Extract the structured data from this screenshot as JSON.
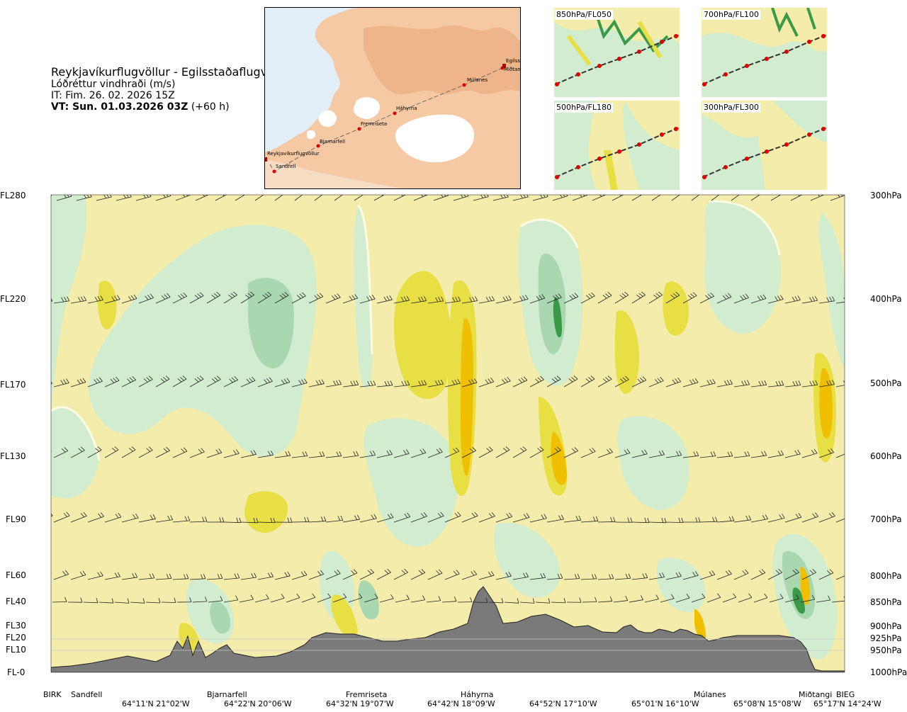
{
  "header": {
    "route": "Reykjavíkurflugvöllur - Egilsstaðaflugvöllur",
    "variable": "Lóðréttur vindhraði (m/s)",
    "issue_time": "IT: Fim. 26. 02. 2026 15Z",
    "valid_time_bold": "VT: Sun. 01.03.2026 03Z",
    "valid_offset": "(+60 h)"
  },
  "route_map": {
    "waypoints": [
      {
        "name": "Reykjavíkurflugvöllur"
      },
      {
        "name": "Sandfell"
      },
      {
        "name": "Bjarnarfell"
      },
      {
        "name": "Fremriseta"
      },
      {
        "name": "Háhyrna"
      },
      {
        "name": "Múlanes"
      },
      {
        "name": "Miðtangi"
      },
      {
        "name": "Egilsst"
      }
    ]
  },
  "level_panels": [
    {
      "label": "850hPa/FL050"
    },
    {
      "label": "700hPa/FL100"
    },
    {
      "label": "500hPa/FL180"
    },
    {
      "label": "300hPa/FL300"
    }
  ],
  "colors": {
    "positive_1": "#f3ecaa",
    "positive_2": "#e8df45",
    "positive_3": "#f0c000",
    "negative_1": "#d2eccf",
    "negative_2": "#a9d7b0",
    "negative_3": "#3a9a48",
    "near_zero": "#fdfde6",
    "terrain": "#7a7a7a"
  },
  "chart_data": {
    "type": "cross-section",
    "flight_levels": [
      "FL280",
      "FL220",
      "FL170",
      "FL130",
      "FL90",
      "FL60",
      "FL40",
      "FL30",
      "FL20",
      "FL10",
      "FL-0"
    ],
    "pressure_levels": [
      "300hPa",
      "400hPa",
      "500hPa",
      "600hPa",
      "700hPa",
      "800hPa",
      "850hPa",
      "900hPa",
      "925hPa",
      "950hPa",
      "1000hPa"
    ],
    "stations": [
      "BIRK",
      "Sandfell",
      "Bjarnarfell",
      "Fremriseta",
      "Háhyrna",
      "Múlanes",
      "Miðtangi",
      "BIEG"
    ],
    "coordinates": [
      "64°11'N 21°02'W",
      "64°22'N 20°06'W",
      "64°32'N 19°07'W",
      "64°42'N 18°09'W",
      "64°52'N 17°10'W",
      "65°01'N 16°10'W",
      "65°08'N 15°08'W",
      "65°17'N 14°24'W"
    ],
    "vertical_axis": "pressure",
    "grid": false
  }
}
